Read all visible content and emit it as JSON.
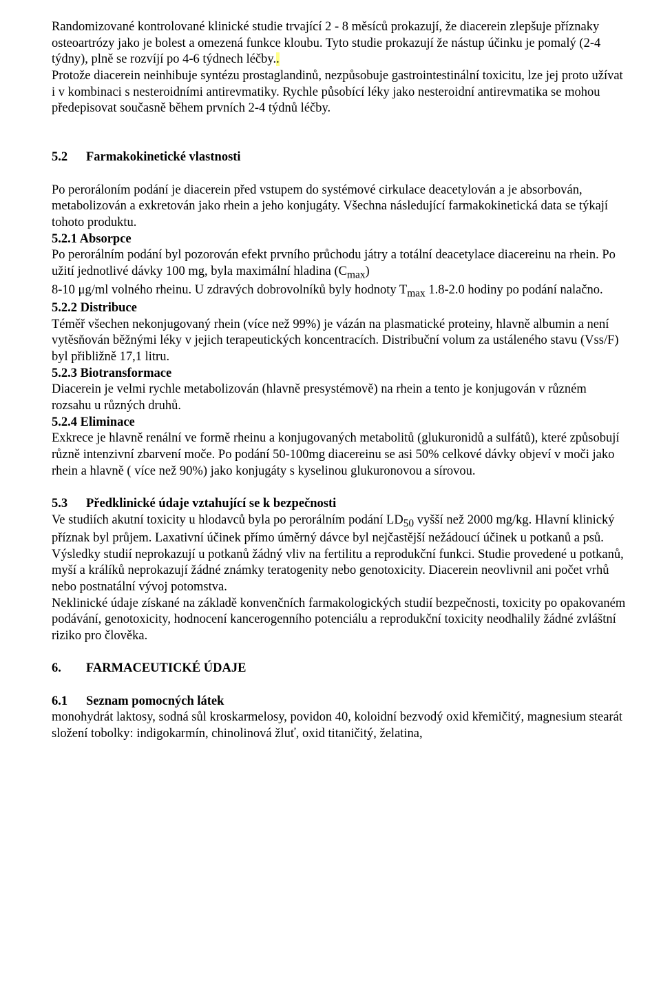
{
  "p1": "Randomizované kontrolované klinické studie trvající 2 - 8 měsíců prokazují, že diacerein zlepšuje příznaky osteoartrózy jako je bolest a omezená funkce kloubu. Tyto studie prokazují že nástup účinku je pomalý (2-4 týdny), plně se rozvíjí po 4-6 týdnech léčby.",
  "p1b": ".",
  "p2": "Protože diacerein neinhibuje syntézu prostaglandinů, nezpůsobuje gastrointestinální toxicitu, lze jej proto užívat i v kombinaci s nesteroidními antirevmatiky. Rychle působící léky jako nesteroidní antirevmatika se mohou předepisovat současně během prvních 2-4 týdnů léčby.",
  "s52_num": "5.2",
  "s52_title": "Farmakokinetické vlastnosti",
  "p52_1": "Po perorálоním podání je diacerein před vstupem do systémové cirkulace deacetylován a je absorbován, metabolizován a exkretován jako rhein a jeho konjugáty. Všechna následující farmakokinetická data se týkají tohoto produktu.",
  "s521": " 5.2.1 Absorpce",
  "p521a": "Po perorálním podání byl pozorován efekt prvního průchodu játry a totální deacetylace diacereinu na rhein. Po užití jednotlivé dávky 100 mg, byla maximální hladina (C",
  "cmax_sub": "max",
  "p521a_end": ")",
  "p521b_pre": " 8-10 μg/ml volného rheinu. U zdravých dobrovolníků byly hodnoty T",
  "tmax_sub": "max",
  "p521b_post": "  1.8-2.0 hodiny po podání nalačno.",
  "s522": "5.2.2 Distribuce",
  "p522": "Téměř všechen nekonjugovaný rhein (více než 99%) je vázán na plasmatické proteiny, hlavně albumin a není vytěsňován běžnými léky v jejich terapeutických koncentracích. Distribuční volum za ustáleného stavu (Vss/F) byl přibližně 17,1 litru.",
  "s523": "5.2.3 Biotransformace",
  "p523": "Diacerein je velmi rychle metabolizován (hlavně presystémově) na rhein a tento je konjugován v různém rozsahu u různých druhů.",
  "s524": "5.2.4 Eliminace",
  "p524": "Exkrece je hlavně renální ve formě rheinu a konjugovaných metabolitů (glukuronidů a sulfátů), které způsobují různě intenzivní zbarvení moče. Po podání 50-100mg diacereinu se asi 50% celkové dávky objeví v moči jako rhein a hlavně ( více než 90%) jako konjugáty s kyselinou glukuronovou a sírovou.",
  "s53_num": "5.3",
  "s53_title": "Předklinické údaje vztahující se k bezpečnosti",
  "p53a_pre": "Ve studiích akutní toxicity u hlodavců byla po perorálním podání LD",
  "ld50_sub": "50",
  "p53a_post": " vyšší než 2000 mg/kg. Hlavní klinický příznak byl průjem. Laxativní účinek přímo úměrný dávce byl nejčastější nežádoucí účinek u potkanů a psů. Výsledky studií neprokazují u potkanů žádný vliv na fertilitu a reprodukční funkci. Studie provedené u potkanů, myší a králíků neprokazují žádné známky teratogenity nebo genotoxicity. Diacerein neovlivnil ani počet vrhů nebo postnatální vývoj potomstva.",
  "p53b": "Neklinické údaje získané na základě konvenčních farmakologických studií bezpečnosti, toxicity po opakovaném podávání, genotoxicity, hodnocení kancerogenního potenciálu a reprodukční toxicity neodhalily žádné zvláštní riziko pro člověka.",
  "s6_num": "6.",
  "s6_title": "FARMACEUTICKÉ ÚDAJE",
  "s61_num": "6.1",
  "s61_title": "Seznam pomocných látek",
  "p61a": "monohydrát laktosy, sodná sůl kroskarmelosy, povidon 40, koloidní bezvodý oxid křemičitý, magnesium stearát",
  "p61b": "složení tobolky: indigokarmín, chinolinová žluť, oxid titaničitý, želatina,",
  "colors": {
    "text": "#000000",
    "background": "#ffffff",
    "highlight": "#ffff88"
  },
  "typography": {
    "font_family": "Times New Roman",
    "base_fontsize_pt": 14,
    "line_height": 1.28
  }
}
